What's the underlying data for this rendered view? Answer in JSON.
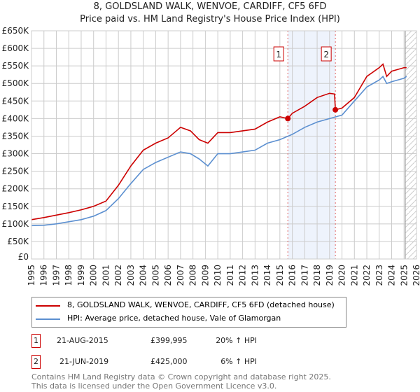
{
  "title": "8, GOLDSLAND WALK, WENVOE, CARDIFF, CF5 6FD",
  "subtitle": "Price paid vs. HM Land Registry's House Price Index (HPI)",
  "chart_data": {
    "type": "line",
    "xlim": [
      1995,
      2026
    ],
    "ylim": [
      0,
      650000
    ],
    "yticks": [
      "£0",
      "£50K",
      "£100K",
      "£150K",
      "£200K",
      "£250K",
      "£300K",
      "£350K",
      "£400K",
      "£450K",
      "£500K",
      "£550K",
      "£600K",
      "£650K"
    ],
    "xticks": [
      "1995",
      "1996",
      "1997",
      "1998",
      "1999",
      "2000",
      "2001",
      "2002",
      "2003",
      "2004",
      "2005",
      "2006",
      "2007",
      "2008",
      "2009",
      "2010",
      "2011",
      "2012",
      "2013",
      "2014",
      "2015",
      "2016",
      "2017",
      "2018",
      "2019",
      "2020",
      "2021",
      "2022",
      "2023",
      "2024",
      "2025",
      "2026"
    ],
    "series": [
      {
        "name": "8, GOLDSLAND WALK, WENVOE, CARDIFF, CF5 6FD (detached house)",
        "color": "#cc0000",
        "x": [
          1995,
          1996,
          1997,
          1998,
          1999,
          2000,
          2001,
          2002,
          2003,
          2004,
          2005,
          2006,
          2007,
          2007.8,
          2008.5,
          2009.2,
          2010,
          2011,
          2012,
          2013,
          2014,
          2015,
          2015.64,
          2016,
          2017,
          2018,
          2019,
          2019.4,
          2019.47,
          2020,
          2021,
          2022,
          2023,
          2023.3,
          2023.6,
          2024,
          2025,
          2025.2
        ],
        "y": [
          112000,
          118000,
          125000,
          132000,
          140000,
          150000,
          165000,
          210000,
          265000,
          310000,
          330000,
          345000,
          375000,
          365000,
          340000,
          330000,
          360000,
          360000,
          365000,
          370000,
          390000,
          405000,
          399995,
          415000,
          435000,
          460000,
          472000,
          470000,
          425000,
          430000,
          460000,
          520000,
          545000,
          555000,
          520000,
          535000,
          545000,
          545000
        ]
      },
      {
        "name": "HPI: Average price, detached house, Vale of Glamorgan",
        "color": "#5b8fd0",
        "x": [
          1995,
          1996,
          1997,
          1998,
          1999,
          2000,
          2001,
          2002,
          2003,
          2004,
          2005,
          2006,
          2007,
          2007.8,
          2008.5,
          2009.2,
          2010,
          2011,
          2012,
          2013,
          2014,
          2015,
          2016,
          2017,
          2018,
          2019,
          2020,
          2021,
          2022,
          2023,
          2023.3,
          2023.6,
          2024,
          2025,
          2025.2
        ],
        "y": [
          95000,
          96000,
          100000,
          106000,
          112000,
          122000,
          138000,
          172000,
          215000,
          255000,
          275000,
          290000,
          305000,
          300000,
          285000,
          265000,
          300000,
          300000,
          305000,
          310000,
          330000,
          340000,
          355000,
          375000,
          390000,
          400000,
          410000,
          450000,
          490000,
          510000,
          520000,
          500000,
          505000,
          515000,
          520000
        ]
      }
    ],
    "sales": [
      {
        "label": "1",
        "x": 2015.64,
        "y": 399995
      },
      {
        "label": "2",
        "x": 2019.47,
        "y": 425000
      }
    ],
    "shaded_range": [
      2015.64,
      2019.47
    ],
    "hatched_from": 2025.1,
    "legend_placement": "below"
  },
  "transactions": [
    {
      "num": "1",
      "date": "21-AUG-2015",
      "price": "£399,995",
      "hpi": "20% ↑ HPI"
    },
    {
      "num": "2",
      "date": "21-JUN-2019",
      "price": "£425,000",
      "hpi": "6% ↑ HPI"
    }
  ],
  "footer": [
    "Contains HM Land Registry data © Crown copyright and database right 2025.",
    "This data is licensed under the Open Government Licence v3.0."
  ]
}
